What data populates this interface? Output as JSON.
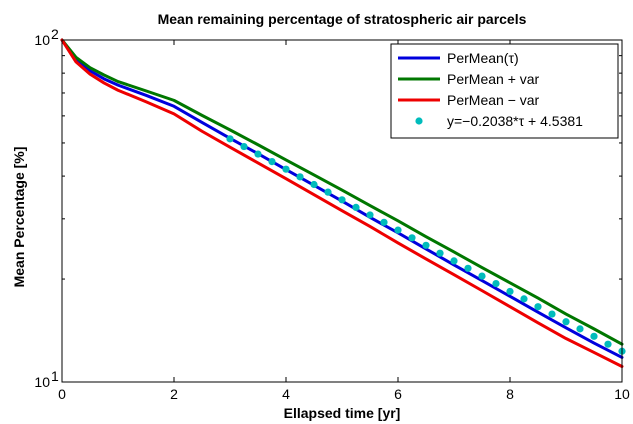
{
  "chart_data": {
    "type": "line",
    "title": "Mean remaining percentage of stratospheric air parcels",
    "xlabel": "Ellapsed time [yr]",
    "ylabel": "Mean Percentage [%]",
    "xlim": [
      0,
      10
    ],
    "ylim": [
      10,
      100
    ],
    "yscale": "log",
    "grid": false,
    "legend_position": "top-right",
    "x_ticks": [
      0,
      2,
      4,
      6,
      8,
      10
    ],
    "x_tick_labels": [
      "0",
      "2",
      "4",
      "6",
      "8",
      "10"
    ],
    "y_ticks": [
      10,
      100
    ],
    "y_tick_base": "10",
    "y_tick_exponents": [
      "1",
      "2"
    ],
    "x": [
      0,
      0.25,
      0.5,
      0.75,
      1,
      1.5,
      2,
      2.5,
      3,
      3.5,
      4,
      4.5,
      5,
      5.5,
      6,
      6.5,
      7,
      7.5,
      8,
      8.5,
      9,
      9.5,
      10
    ],
    "series": [
      {
        "name": "PerMean(τ)",
        "color": "#0000dd",
        "style": "line",
        "values": [
          100,
          87.7,
          81.3,
          77.0,
          73.8,
          68.9,
          64.0,
          57.4,
          51.6,
          46.5,
          41.8,
          37.6,
          33.8,
          30.3,
          27.3,
          24.5,
          22.0,
          19.8,
          17.8,
          16.0,
          14.4,
          13.0,
          11.8
        ]
      },
      {
        "name": "PerMean + var",
        "color": "#007700",
        "style": "line",
        "values": [
          100,
          89.0,
          83.0,
          79.0,
          75.6,
          71.0,
          66.6,
          60.2,
          54.6,
          49.4,
          44.6,
          40.3,
          36.4,
          32.8,
          29.6,
          26.6,
          24.0,
          21.6,
          19.5,
          17.6,
          15.8,
          14.3,
          12.9
        ]
      },
      {
        "name": "PerMean − var",
        "color": "#ee0000",
        "style": "line",
        "values": [
          100,
          86.3,
          79.5,
          74.9,
          71.3,
          66.0,
          60.8,
          54.1,
          48.6,
          43.7,
          39.3,
          35.3,
          31.7,
          28.5,
          25.5,
          22.9,
          20.6,
          18.5,
          16.6,
          14.9,
          13.4,
          12.2,
          11.1
        ]
      },
      {
        "name": "y=−0.2038*τ + 4.5381",
        "color": "#00bcbc",
        "style": "markers",
        "x": [
          3,
          3.25,
          3.5,
          3.75,
          4,
          4.25,
          4.5,
          4.75,
          5,
          5.25,
          5.5,
          5.75,
          6,
          6.25,
          6.5,
          6.75,
          7,
          7.25,
          7.5,
          7.75,
          8,
          8.25,
          8.5,
          8.75,
          9,
          9.25,
          9.5,
          9.75,
          10
        ],
        "values": [
          51.4,
          48.8,
          46.4,
          44.1,
          41.9,
          39.8,
          37.8,
          35.9,
          34.1,
          32.4,
          30.8,
          29.3,
          27.8,
          26.4,
          25.1,
          23.8,
          22.6,
          21.5,
          20.4,
          19.4,
          18.4,
          17.5,
          16.6,
          15.8,
          15.0,
          14.3,
          13.6,
          12.9,
          12.3
        ]
      }
    ]
  }
}
